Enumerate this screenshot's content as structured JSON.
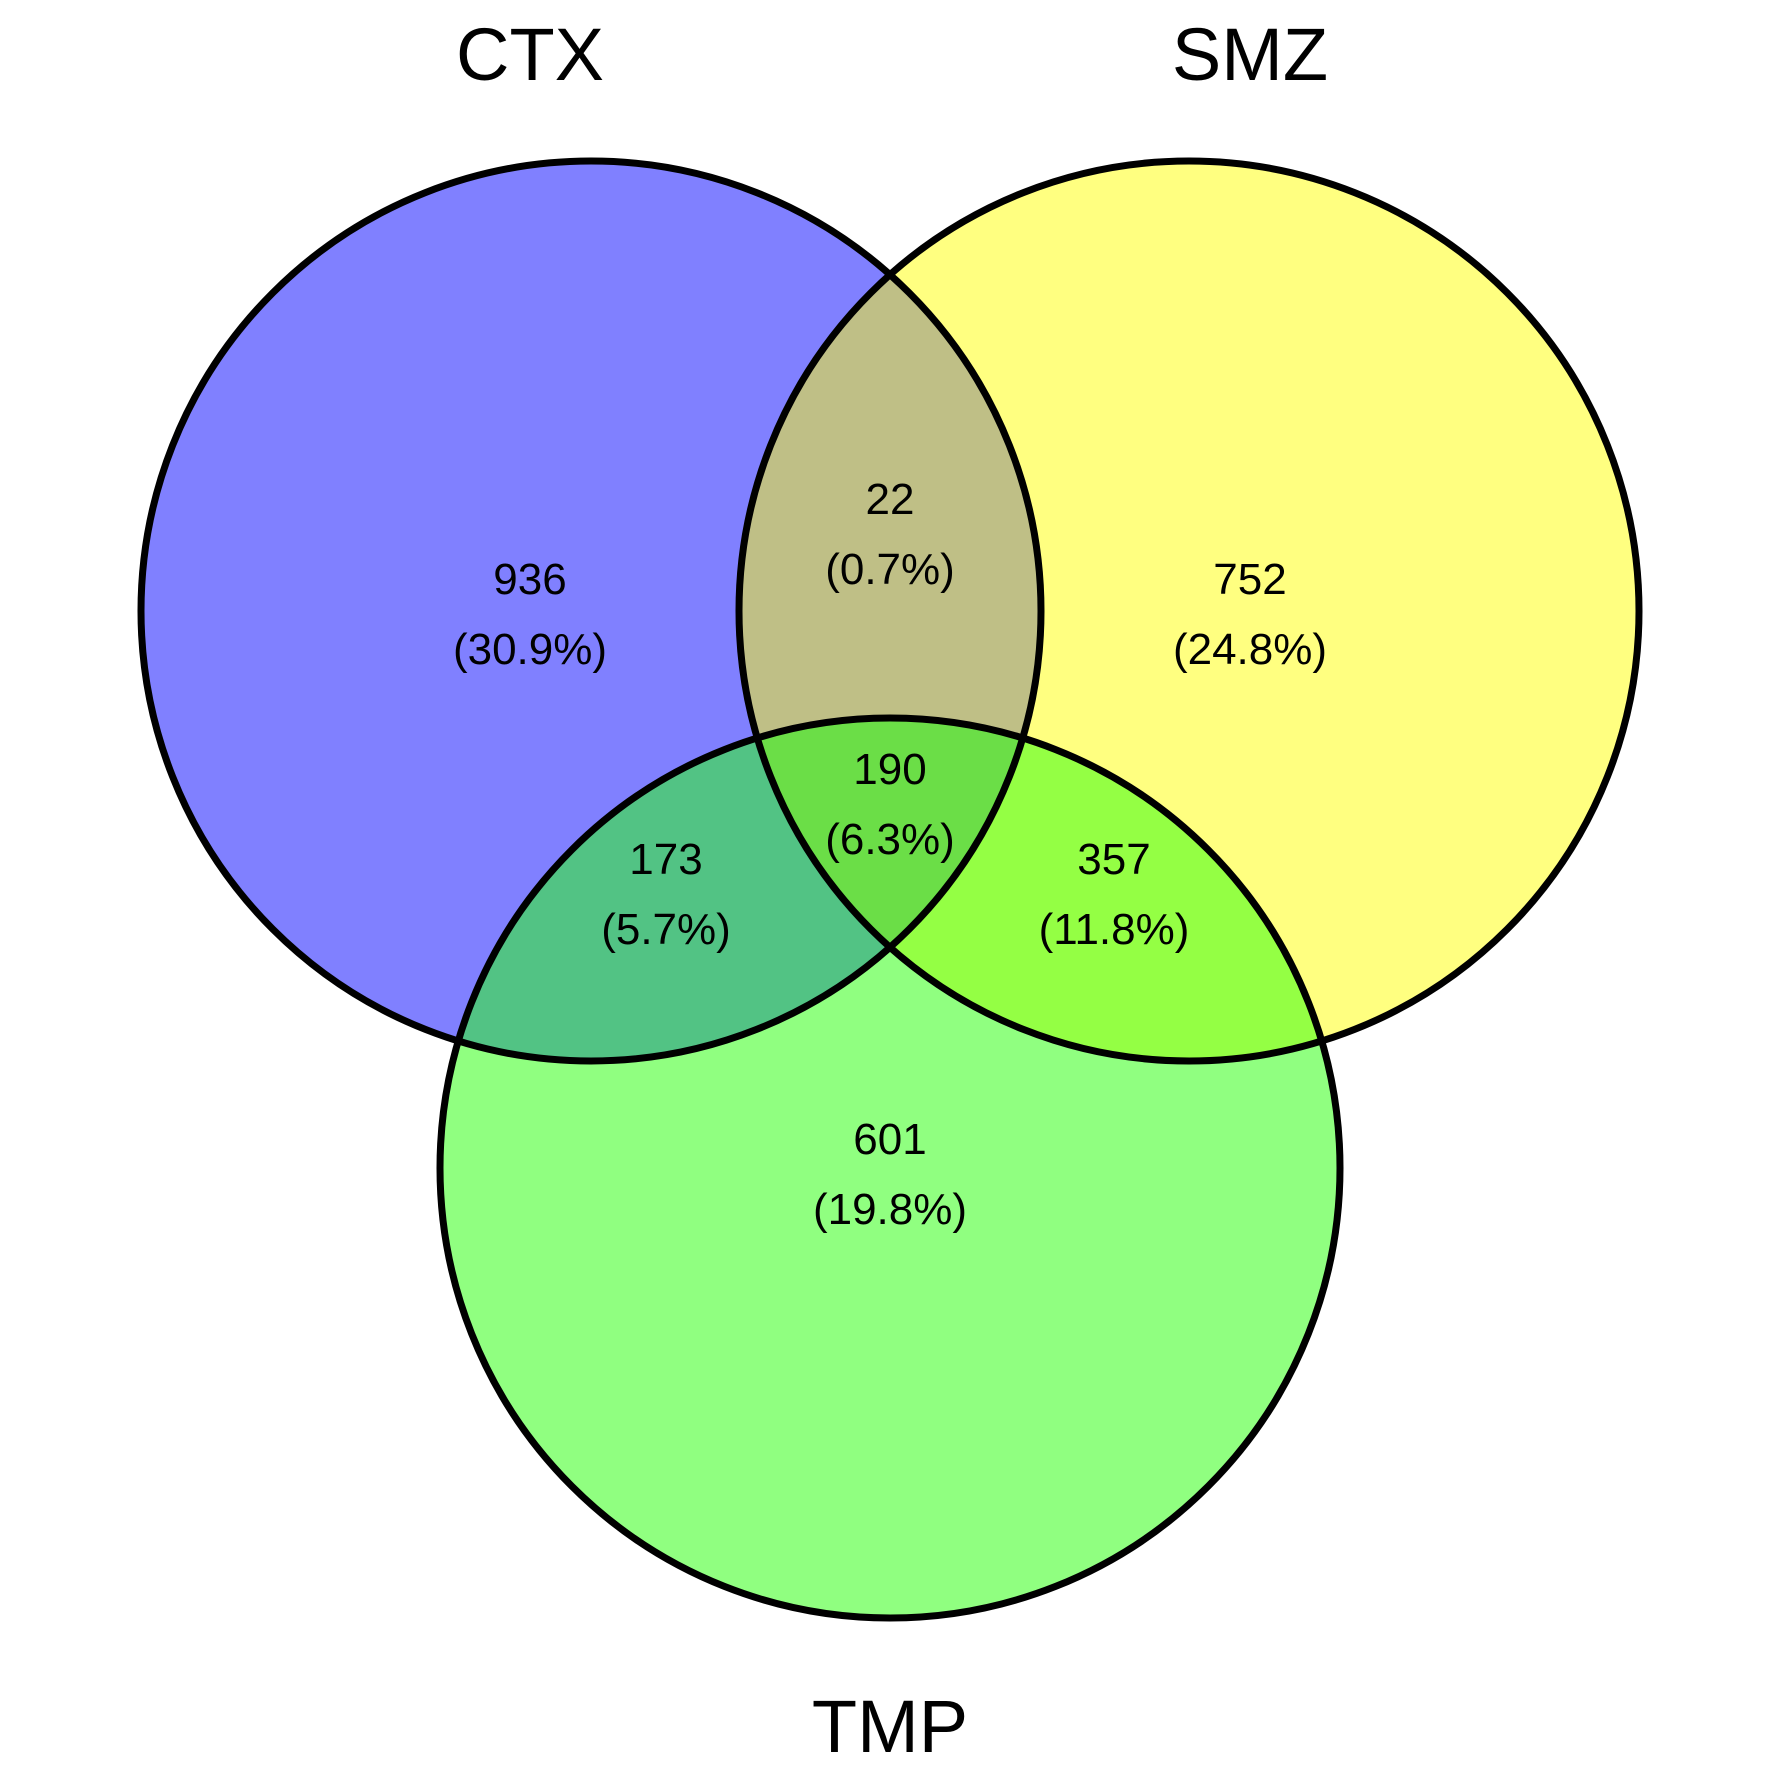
{
  "colors": {
    "CTX": "#8080FF",
    "SMZ": "#FFFF80",
    "TMP": "#90FF80",
    "CTX_SMZ": "#BFBF86",
    "CTX_TMP": "#52C384",
    "SMZ_TMP": "#94FF44",
    "CTX_SMZ_TMP": "#6BDE47",
    "outline": "#000000"
  },
  "sets": {
    "CTX": "CTX",
    "SMZ": "SMZ",
    "TMP": "TMP"
  },
  "regions": {
    "ctx_only": {
      "count": "936",
      "pct": "(30.9%)"
    },
    "smz_only": {
      "count": "752",
      "pct": "(24.8%)"
    },
    "tmp_only": {
      "count": "601",
      "pct": "(19.8%)"
    },
    "ctx_smz": {
      "count": "22",
      "pct": "(0.7%)"
    },
    "ctx_tmp": {
      "count": "173",
      "pct": "(5.7%)"
    },
    "smz_tmp": {
      "count": "357",
      "pct": "(11.8%)"
    },
    "all": {
      "count": "190",
      "pct": "(6.3%)"
    }
  }
}
